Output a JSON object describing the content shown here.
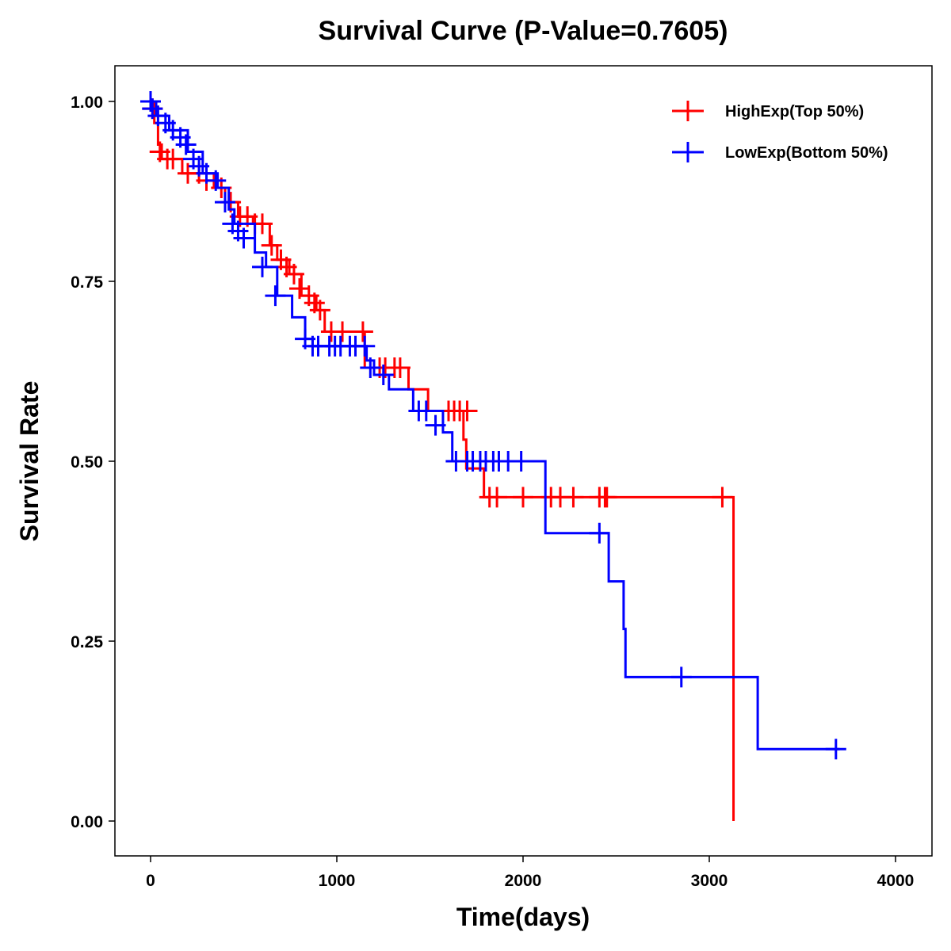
{
  "chart_data": {
    "type": "line",
    "title": "Survival Curve (P-Value=0.7605)",
    "xlabel": "Time(days)",
    "ylabel": "Survival Rate",
    "xlim": [
      -190,
      4190
    ],
    "ylim": [
      -0.048,
      1.05
    ],
    "xticks": [
      0,
      1000,
      2000,
      3000,
      4000
    ],
    "xtick_labels": [
      "0",
      "1000",
      "2000",
      "3000",
      "4000"
    ],
    "yticks": [
      0,
      0.25,
      0.5,
      0.75,
      1.0
    ],
    "ytick_labels": [
      "0.00",
      "0.25",
      "0.50",
      "0.75",
      "1.00"
    ],
    "grid": false,
    "legend_position": "top-right",
    "series": [
      {
        "name": "HighExp(Top 50%)",
        "color": "#ff0000",
        "steps": [
          [
            0,
            1.0
          ],
          [
            20,
            0.97
          ],
          [
            40,
            0.94
          ],
          [
            60,
            0.92
          ],
          [
            170,
            0.9
          ],
          [
            340,
            0.88
          ],
          [
            400,
            0.86
          ],
          [
            470,
            0.84
          ],
          [
            550,
            0.83
          ],
          [
            640,
            0.8
          ],
          [
            680,
            0.78
          ],
          [
            745,
            0.76
          ],
          [
            810,
            0.73
          ],
          [
            890,
            0.71
          ],
          [
            935,
            0.68
          ],
          [
            1150,
            0.63
          ],
          [
            1385,
            0.6
          ],
          [
            1490,
            0.57
          ],
          [
            1680,
            0.53
          ],
          [
            1695,
            0.49
          ],
          [
            1790,
            0.45
          ],
          [
            3130,
            0.0
          ]
        ],
        "end": 3130,
        "censored": [
          [
            10,
            0.99
          ],
          [
            50,
            0.93
          ],
          [
            90,
            0.92
          ],
          [
            120,
            0.92
          ],
          [
            200,
            0.9
          ],
          [
            260,
            0.9
          ],
          [
            300,
            0.89
          ],
          [
            380,
            0.88
          ],
          [
            430,
            0.86
          ],
          [
            480,
            0.84
          ],
          [
            520,
            0.84
          ],
          [
            560,
            0.83
          ],
          [
            600,
            0.83
          ],
          [
            650,
            0.8
          ],
          [
            700,
            0.78
          ],
          [
            730,
            0.77
          ],
          [
            770,
            0.76
          ],
          [
            800,
            0.74
          ],
          [
            850,
            0.73
          ],
          [
            880,
            0.72
          ],
          [
            910,
            0.71
          ],
          [
            970,
            0.68
          ],
          [
            1030,
            0.68
          ],
          [
            1140,
            0.68
          ],
          [
            1230,
            0.63
          ],
          [
            1260,
            0.63
          ],
          [
            1310,
            0.63
          ],
          [
            1340,
            0.63
          ],
          [
            1600,
            0.57
          ],
          [
            1630,
            0.57
          ],
          [
            1660,
            0.57
          ],
          [
            1700,
            0.57
          ],
          [
            1820,
            0.45
          ],
          [
            1860,
            0.45
          ],
          [
            2000,
            0.45
          ],
          [
            2150,
            0.45
          ],
          [
            2200,
            0.45
          ],
          [
            2270,
            0.45
          ],
          [
            2410,
            0.45
          ],
          [
            2440,
            0.45
          ],
          [
            2450,
            0.45
          ],
          [
            3070,
            0.45
          ]
        ]
      },
      {
        "name": "LowExp(Bottom 50%)",
        "color": "#0000ff",
        "steps": [
          [
            0,
            1.0
          ],
          [
            30,
            0.98
          ],
          [
            100,
            0.96
          ],
          [
            200,
            0.93
          ],
          [
            280,
            0.9
          ],
          [
            360,
            0.88
          ],
          [
            420,
            0.85
          ],
          [
            450,
            0.83
          ],
          [
            560,
            0.79
          ],
          [
            620,
            0.77
          ],
          [
            680,
            0.73
          ],
          [
            760,
            0.7
          ],
          [
            830,
            0.67
          ],
          [
            870,
            0.66
          ],
          [
            1160,
            0.64
          ],
          [
            1200,
            0.62
          ],
          [
            1280,
            0.6
          ],
          [
            1410,
            0.57
          ],
          [
            1570,
            0.54
          ],
          [
            1620,
            0.5
          ],
          [
            2120,
            0.4
          ],
          [
            2460,
            0.333
          ],
          [
            2540,
            0.267
          ],
          [
            2550,
            0.2
          ],
          [
            3260,
            0.1
          ]
        ],
        "end": 3700,
        "censored": [
          [
            0,
            1.0
          ],
          [
            10,
            0.99
          ],
          [
            40,
            0.98
          ],
          [
            80,
            0.97
          ],
          [
            120,
            0.96
          ],
          [
            160,
            0.95
          ],
          [
            190,
            0.94
          ],
          [
            230,
            0.92
          ],
          [
            260,
            0.91
          ],
          [
            300,
            0.9
          ],
          [
            350,
            0.89
          ],
          [
            400,
            0.86
          ],
          [
            440,
            0.83
          ],
          [
            470,
            0.82
          ],
          [
            500,
            0.81
          ],
          [
            600,
            0.77
          ],
          [
            670,
            0.73
          ],
          [
            830,
            0.67
          ],
          [
            870,
            0.66
          ],
          [
            900,
            0.66
          ],
          [
            960,
            0.66
          ],
          [
            990,
            0.66
          ],
          [
            1020,
            0.66
          ],
          [
            1070,
            0.66
          ],
          [
            1100,
            0.66
          ],
          [
            1150,
            0.66
          ],
          [
            1180,
            0.63
          ],
          [
            1250,
            0.62
          ],
          [
            1440,
            0.57
          ],
          [
            1480,
            0.57
          ],
          [
            1530,
            0.55
          ],
          [
            1640,
            0.5
          ],
          [
            1700,
            0.5
          ],
          [
            1730,
            0.5
          ],
          [
            1770,
            0.5
          ],
          [
            1800,
            0.5
          ],
          [
            1840,
            0.5
          ],
          [
            1870,
            0.5
          ],
          [
            1920,
            0.5
          ],
          [
            1990,
            0.5
          ],
          [
            2410,
            0.4
          ],
          [
            2850,
            0.2
          ],
          [
            3680,
            0.1
          ]
        ]
      }
    ]
  }
}
